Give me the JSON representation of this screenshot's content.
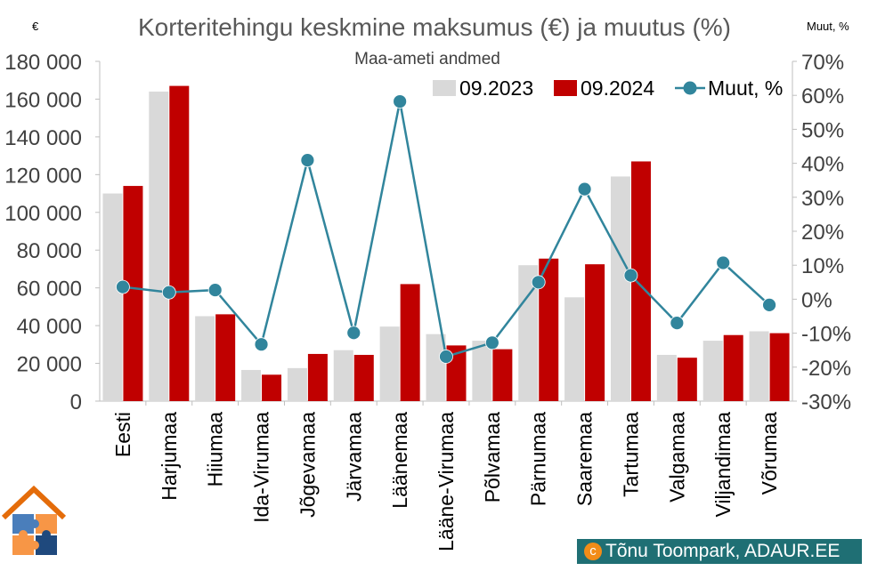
{
  "chart_data": {
    "type": "bar",
    "title": "Korteritehingu keskmine maksumus (€) ja muutus (%)",
    "subtitle": "Maa-ameti andmed",
    "y_left_unit": "€",
    "y_right_unit": "Muut, %",
    "categories": [
      "Eesti",
      "Harjumaa",
      "Hiiumaa",
      "Ida-Virumaa",
      "Jõgevamaa",
      "Järvamaa",
      "Läänemaa",
      "Lääne-Virumaa",
      "Põlvamaa",
      "Pärnumaa",
      "Saaremaa",
      "Tartumaa",
      "Valgamaa",
      "Viljandimaa",
      "Võrumaa"
    ],
    "series": [
      {
        "name": "09.2023",
        "type": "bar",
        "axis": "left",
        "color": "#d9d9d9",
        "values": [
          110000,
          164000,
          45000,
          16500,
          17500,
          27000,
          39500,
          35500,
          32000,
          72000,
          55000,
          119000,
          24500,
          32000,
          37000
        ]
      },
      {
        "name": "09.2024",
        "type": "bar",
        "axis": "left",
        "color": "#c00000",
        "values": [
          114000,
          167000,
          46000,
          14000,
          25000,
          24500,
          62000,
          29500,
          27500,
          75500,
          72500,
          127000,
          23000,
          35000,
          36000
        ]
      },
      {
        "name": "Muut, %",
        "type": "line",
        "axis": "right",
        "color": "#31859c",
        "values": [
          3.6,
          2.0,
          2.7,
          -13.3,
          40.9,
          -9.9,
          58.2,
          -16.9,
          -12.8,
          5.0,
          32.4,
          7.0,
          -7.0,
          10.7,
          -1.7
        ]
      }
    ],
    "y_left": {
      "min": 0,
      "max": 180000,
      "step": 20000,
      "ticks": [
        "0",
        "20 000",
        "40 000",
        "60 000",
        "80 000",
        "100 000",
        "120 000",
        "140 000",
        "160 000",
        "180 000"
      ]
    },
    "y_right": {
      "min": -30,
      "max": 70,
      "step": 10,
      "ticks": [
        "-30%",
        "-20%",
        "-10%",
        "0%",
        "10%",
        "20%",
        "30%",
        "40%",
        "50%",
        "60%",
        "70%"
      ]
    },
    "grid": false,
    "legend_position": "top-right"
  },
  "credit": {
    "symbol": "c",
    "text": "Tõnu Toompark, ADAUR.EE"
  },
  "logo": {
    "colors": [
      "#e46c0a",
      "#4a7ebb",
      "#f79646",
      "#1f497d"
    ]
  }
}
